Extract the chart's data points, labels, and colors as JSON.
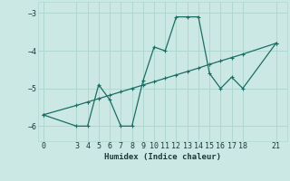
{
  "xlabel": "Humidex (Indice chaleur)",
  "bg_color": "#cce8e4",
  "line_color": "#1a6e64",
  "grid_color": "#b0d8d0",
  "line1_x": [
    0,
    3,
    4,
    5,
    6,
    7,
    8,
    9,
    10,
    11,
    12,
    13,
    14,
    15,
    16,
    17,
    18,
    21
  ],
  "line1_y": [
    -5.7,
    -6.0,
    -6.0,
    -4.9,
    -5.3,
    -6.0,
    -6.0,
    -4.8,
    -3.9,
    -4.0,
    -3.1,
    -3.1,
    -3.1,
    -4.6,
    -5.0,
    -4.7,
    -5.0,
    -3.8
  ],
  "line2_x": [
    0,
    3,
    4,
    5,
    6,
    7,
    8,
    9,
    10,
    11,
    12,
    13,
    14,
    15,
    16,
    17,
    18,
    21
  ],
  "line2_y": [
    -5.7,
    -5.45,
    -5.36,
    -5.27,
    -5.18,
    -5.09,
    -5.0,
    -4.91,
    -4.82,
    -4.73,
    -4.64,
    -4.55,
    -4.46,
    -4.36,
    -4.27,
    -4.18,
    -4.09,
    -3.8
  ],
  "ylim": [
    -6.4,
    -2.7
  ],
  "xlim": [
    -0.5,
    22
  ],
  "yticks": [
    -6,
    -5,
    -4,
    -3
  ],
  "xticks": [
    0,
    3,
    4,
    5,
    6,
    7,
    8,
    9,
    10,
    11,
    12,
    13,
    14,
    15,
    16,
    17,
    18,
    21
  ]
}
